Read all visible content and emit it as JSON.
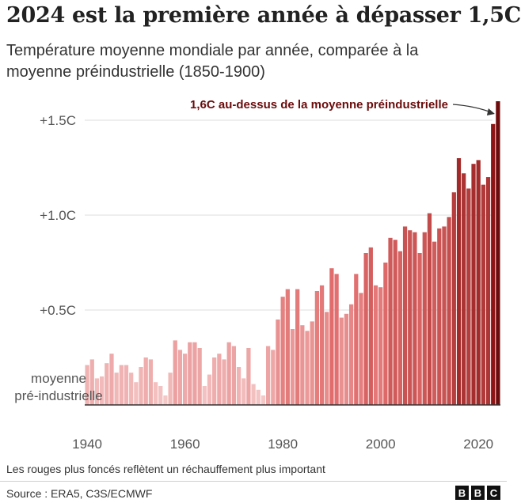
{
  "header": {
    "title": "2024 est la première année à dépasser 1,5C",
    "subtitle": "Température moyenne mondiale par année, comparée à la moyenne préindustrielle (1850-1900)"
  },
  "footer": {
    "note": "Les rouges plus foncés reflètent un réchauffement plus important",
    "source": "Source : ERA5, C3S/ECMWF",
    "logo_letters": [
      "B",
      "B",
      "C"
    ]
  },
  "colors": {
    "light": "#f6cfcf",
    "mid": "#e16c6c",
    "dark": "#8a1010",
    "darkest": "#6b0b0b",
    "gridline": "#dddddd",
    "baseline": "#333333"
  },
  "chart_data": {
    "type": "bar",
    "x_start": 1940,
    "x_end": 2024,
    "values": [
      0.21,
      0.24,
      0.14,
      0.15,
      0.22,
      0.27,
      0.17,
      0.21,
      0.21,
      0.17,
      0.12,
      0.2,
      0.25,
      0.24,
      0.12,
      0.1,
      0.05,
      0.17,
      0.34,
      0.29,
      0.27,
      0.33,
      0.33,
      0.3,
      0.1,
      0.16,
      0.25,
      0.27,
      0.24,
      0.33,
      0.31,
      0.2,
      0.14,
      0.3,
      0.11,
      0.08,
      0.05,
      0.31,
      0.29,
      0.45,
      0.57,
      0.61,
      0.4,
      0.61,
      0.42,
      0.39,
      0.44,
      0.6,
      0.63,
      0.49,
      0.72,
      0.69,
      0.46,
      0.48,
      0.53,
      0.69,
      0.59,
      0.8,
      0.83,
      0.63,
      0.62,
      0.75,
      0.88,
      0.87,
      0.81,
      0.94,
      0.92,
      0.91,
      0.8,
      0.91,
      1.01,
      0.86,
      0.93,
      0.94,
      0.99,
      1.12,
      1.3,
      1.22,
      1.14,
      1.27,
      1.29,
      1.16,
      1.2,
      1.48,
      1.6
    ],
    "ylim": [
      0,
      1.6
    ],
    "y_ticks": [
      {
        "value": 0.5,
        "label": "+0.5C"
      },
      {
        "value": 1.0,
        "label": "+1.0C"
      },
      {
        "value": 1.5,
        "label": "+1.5C"
      }
    ],
    "x_ticks": [
      {
        "value": 1940,
        "label": "1940"
      },
      {
        "value": 1960,
        "label": "1960"
      },
      {
        "value": 1980,
        "label": "1980"
      },
      {
        "value": 2000,
        "label": "2000"
      },
      {
        "value": 2020,
        "label": "2020"
      }
    ],
    "baseline_label": [
      "moyenne",
      "pré-industrielle"
    ],
    "annotation": "1,6C au-dessus de la moyenne préindustrielle",
    "grid": true
  }
}
